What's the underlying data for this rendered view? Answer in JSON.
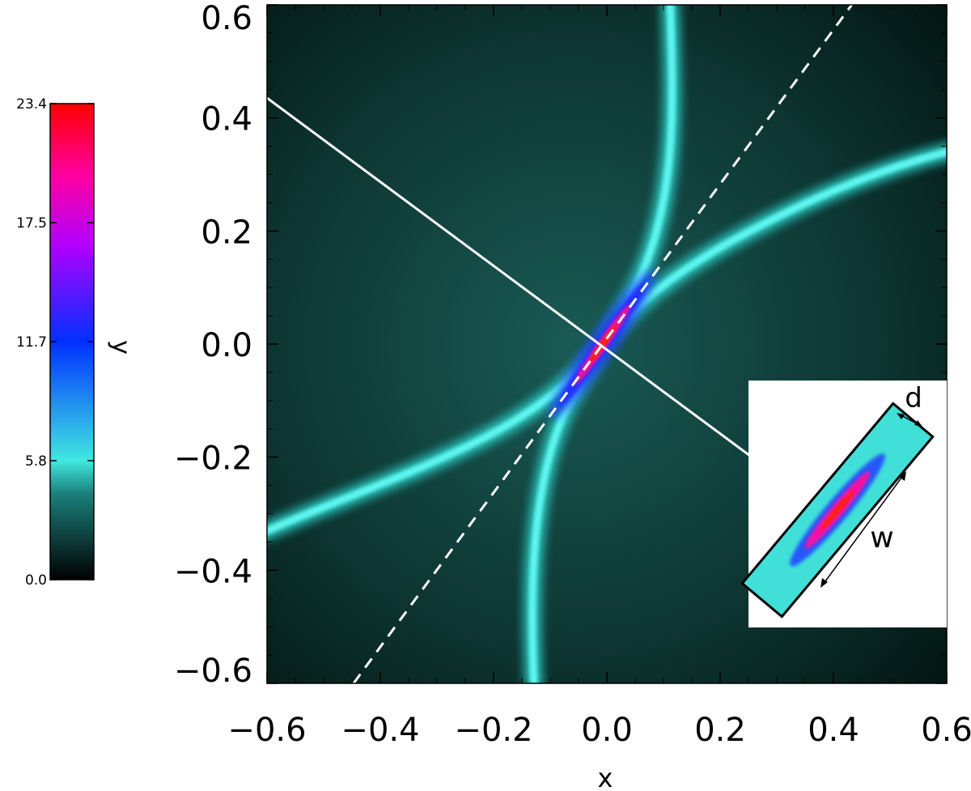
{
  "chart_data": {
    "type": "heatmap",
    "title": "",
    "xlabel": "x",
    "ylabel": "",
    "xlim": [
      -0.6,
      0.6
    ],
    "ylim": [
      -0.6,
      0.6
    ],
    "x_ticks": [
      "−0.6",
      "−0.4",
      "−0.2",
      "0.0",
      "0.2",
      "0.4",
      "0.6"
    ],
    "y_ticks": [
      "−0.6",
      "−0.4",
      "−0.2",
      "0.0",
      "0.2",
      "0.4",
      "0.6"
    ],
    "colorbar": {
      "label": "y",
      "range": [
        0.0,
        23.4
      ],
      "ticks": [
        "0.0",
        "5.8",
        "11.7",
        "17.5",
        "23.4"
      ],
      "colors": [
        "#000000",
        "#1a7f7a",
        "#40e8e0",
        "#0030ff",
        "#b000ff",
        "#ff00a0",
        "#ff0000"
      ]
    },
    "separatrices": [
      {
        "style": "solid",
        "color": "#ffffff",
        "slope": -0.74
      },
      {
        "style": "dashed",
        "color": "#ffffff",
        "slope": 1.45
      }
    ],
    "inset": {
      "labels": {
        "thickness": "d",
        "length": "w"
      }
    }
  }
}
